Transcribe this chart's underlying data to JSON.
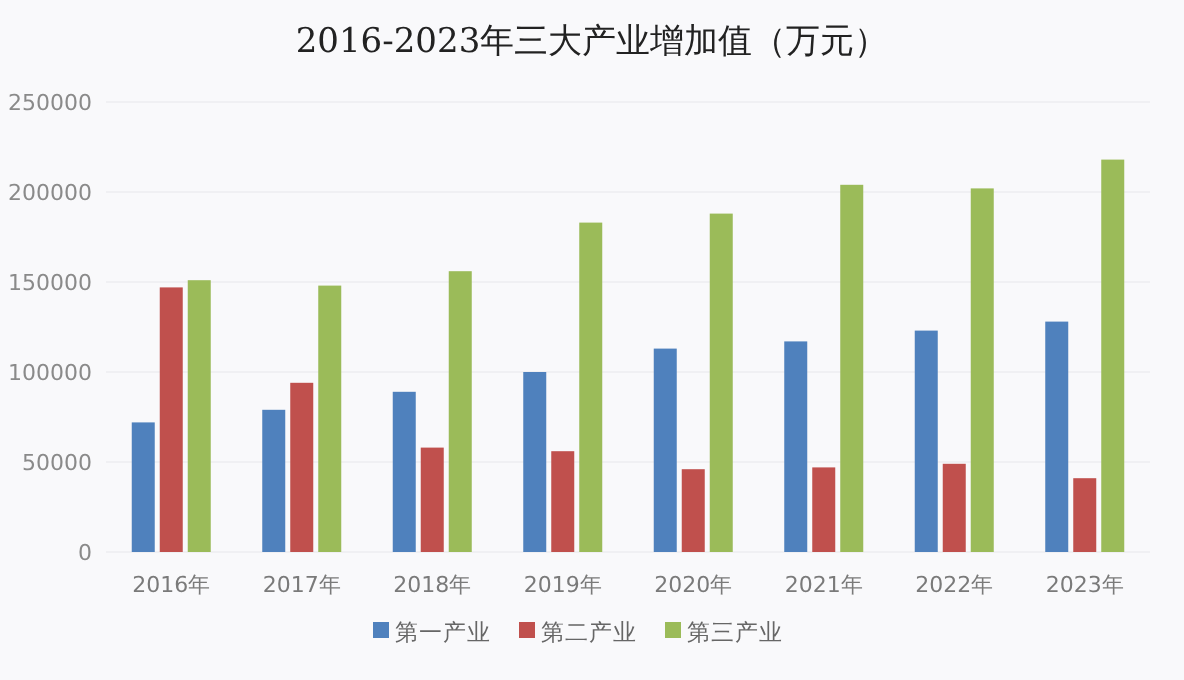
{
  "chart_data": {
    "type": "bar",
    "title": "2016-2023年三大产业增加值（万元）",
    "categories": [
      "2016年",
      "2017年",
      "2018年",
      "2019年",
      "2020年",
      "2021年",
      "2022年",
      "2023年"
    ],
    "series": [
      {
        "name": "第一产业",
        "color": "#4f81bd",
        "values": [
          72000,
          79000,
          89000,
          100000,
          113000,
          117000,
          123000,
          128000
        ]
      },
      {
        "name": "第二产业",
        "color": "#c0504d",
        "values": [
          147000,
          94000,
          58000,
          56000,
          46000,
          47000,
          49000,
          41000
        ]
      },
      {
        "name": "第三产业",
        "color": "#9bbb59",
        "values": [
          151000,
          148000,
          156000,
          183000,
          188000,
          204000,
          202000,
          218000
        ]
      }
    ],
    "ylim": [
      0,
      250000
    ],
    "yticks": [
      0,
      50000,
      100000,
      150000,
      200000,
      250000
    ],
    "grid": "y",
    "legend": "bottom"
  }
}
